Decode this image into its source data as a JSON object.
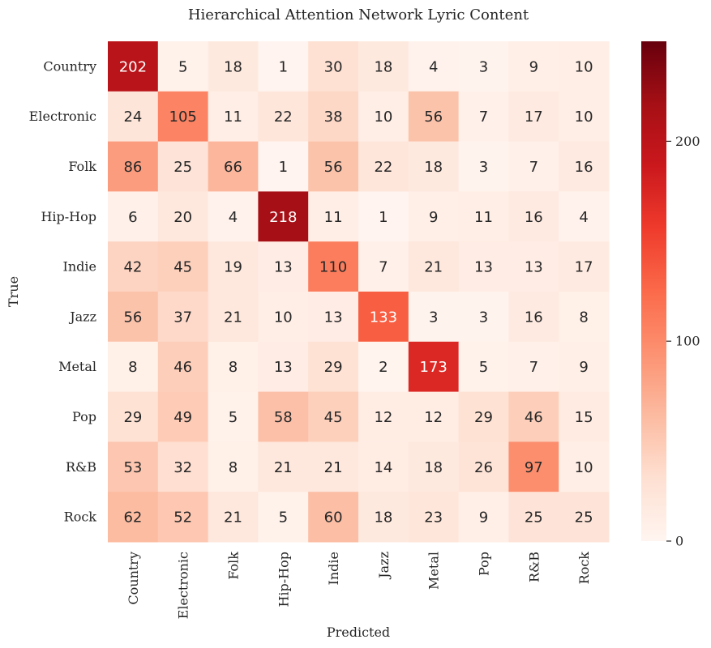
{
  "chart_data": {
    "type": "heatmap",
    "title": "Hierarchical Attention Network Lyric Content",
    "xlabel": "Predicted",
    "ylabel": "True",
    "x_categories": [
      "Country",
      "Electronic",
      "Folk",
      "Hip-Hop",
      "Indie",
      "Jazz",
      "Metal",
      "Pop",
      "R&B",
      "Rock"
    ],
    "y_categories": [
      "Country",
      "Electronic",
      "Folk",
      "Hip-Hop",
      "Indie",
      "Jazz",
      "Metal",
      "Pop",
      "R&B",
      "Rock"
    ],
    "values": [
      [
        202,
        5,
        18,
        1,
        30,
        18,
        4,
        3,
        9,
        10
      ],
      [
        24,
        105,
        11,
        22,
        38,
        10,
        56,
        7,
        17,
        10
      ],
      [
        86,
        25,
        66,
        1,
        56,
        22,
        18,
        3,
        7,
        16
      ],
      [
        6,
        20,
        4,
        218,
        11,
        1,
        9,
        11,
        16,
        4
      ],
      [
        42,
        45,
        19,
        13,
        110,
        7,
        21,
        13,
        13,
        17
      ],
      [
        56,
        37,
        21,
        10,
        13,
        133,
        3,
        3,
        16,
        8
      ],
      [
        8,
        46,
        8,
        13,
        29,
        2,
        173,
        5,
        7,
        9
      ],
      [
        29,
        49,
        5,
        58,
        45,
        12,
        12,
        29,
        46,
        15
      ],
      [
        53,
        32,
        8,
        21,
        21,
        14,
        18,
        26,
        97,
        10
      ],
      [
        62,
        52,
        21,
        5,
        60,
        18,
        23,
        9,
        25,
        25
      ]
    ],
    "colormap": "Reds",
    "vmin": 0,
    "vmax": 250,
    "colorbar_ticks": [
      0,
      100,
      200
    ],
    "colorbar_tick_labels": [
      "0",
      "100",
      "200"
    ]
  }
}
